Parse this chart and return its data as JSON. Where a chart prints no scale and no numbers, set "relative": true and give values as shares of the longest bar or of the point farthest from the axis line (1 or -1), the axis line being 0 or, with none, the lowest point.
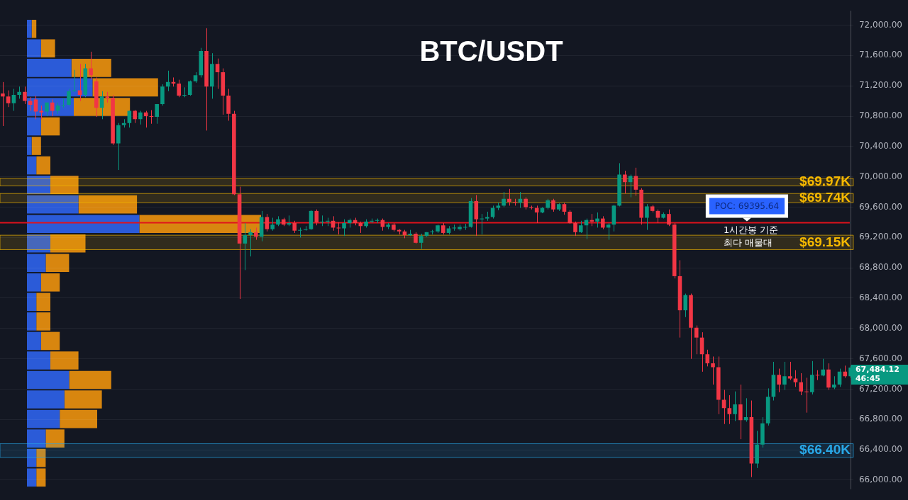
{
  "chart_data": [
    {
      "type": "candlestick",
      "title": "BTC/USDT",
      "categories": [
        null,
        null,
        null,
        null,
        null,
        null,
        null,
        null,
        null,
        null,
        null,
        null,
        null,
        null,
        null,
        null,
        null,
        null,
        null,
        null,
        null,
        null,
        null,
        null,
        null,
        null,
        null,
        null,
        null,
        null,
        null,
        null,
        null,
        null,
        null,
        null,
        null,
        null,
        null,
        null,
        null,
        null,
        null,
        null,
        null,
        null,
        null,
        null,
        null,
        null,
        null,
        null,
        null,
        null,
        null,
        null,
        null,
        null,
        null,
        null,
        null,
        null,
        null,
        null,
        null,
        null,
        null,
        null,
        null,
        null,
        null,
        null,
        null,
        null,
        null,
        null,
        null,
        null,
        null,
        null,
        null,
        null,
        null,
        null,
        null,
        null,
        null,
        null,
        null,
        null,
        null,
        null,
        null,
        null,
        null,
        null,
        null,
        null,
        null,
        null,
        null,
        null,
        null,
        null,
        null,
        null,
        null,
        null,
        null,
        null,
        null,
        null,
        null,
        null,
        null,
        null,
        null,
        null,
        null,
        null,
        null,
        null,
        null,
        null,
        null,
        null,
        null,
        null,
        null,
        null,
        null,
        null,
        null,
        null,
        null,
        null,
        null,
        null,
        null,
        null,
        null,
        null,
        null,
        null,
        null,
        null,
        null,
        null,
        null,
        null,
        null,
        null,
        null,
        null,
        null
      ],
      "ohlc": [
        [
          71100,
          71250,
          70670,
          71060
        ],
        [
          71060,
          71140,
          70920,
          70970
        ],
        [
          70970,
          71160,
          70870,
          71080
        ],
        [
          71080,
          71190,
          71030,
          71120
        ],
        [
          71120,
          71190,
          70960,
          71000
        ],
        [
          71000,
          71050,
          70870,
          70950
        ],
        [
          71020,
          71070,
          70760,
          70860
        ],
        [
          70870,
          70940,
          70760,
          70850
        ],
        [
          70860,
          70980,
          70800,
          70980
        ],
        [
          70980,
          71020,
          70800,
          70870
        ],
        [
          70870,
          70980,
          70830,
          70940
        ],
        [
          70940,
          71030,
          70910,
          70950
        ],
        [
          70950,
          71160,
          70940,
          71130
        ],
        [
          71130,
          71410,
          71120,
          71140
        ],
        [
          71140,
          71490,
          71000,
          71080
        ],
        [
          71080,
          71490,
          71050,
          71430
        ],
        [
          71430,
          71650,
          71280,
          71340
        ],
        [
          71260,
          71310,
          70790,
          70910
        ],
        [
          70910,
          71130,
          70760,
          71060
        ],
        [
          71060,
          71120,
          70980,
          71040
        ],
        [
          71040,
          71080,
          70420,
          70440
        ],
        [
          70440,
          70710,
          70090,
          70680
        ],
        [
          70680,
          70760,
          70650,
          70710
        ],
        [
          70710,
          70870,
          70650,
          70870
        ],
        [
          70870,
          70880,
          70710,
          70760
        ],
        [
          70760,
          70870,
          70690,
          70850
        ],
        [
          70850,
          70870,
          70650,
          70800
        ],
        [
          70800,
          70880,
          70700,
          70790
        ],
        [
          70790,
          70960,
          70700,
          70960
        ],
        [
          70960,
          71220,
          70940,
          71190
        ],
        [
          71190,
          71400,
          71130,
          71250
        ],
        [
          71250,
          71310,
          71190,
          71230
        ],
        [
          71230,
          71280,
          71050,
          71070
        ],
        [
          71070,
          71180,
          71050,
          71080
        ],
        [
          71080,
          71270,
          71070,
          71260
        ],
        [
          71260,
          71380,
          71240,
          71340
        ],
        [
          71340,
          71700,
          71310,
          71660
        ],
        [
          71660,
          71960,
          70610,
          71190
        ],
        [
          71190,
          71630,
          71030,
          71490
        ],
        [
          71490,
          71560,
          71160,
          71380
        ],
        [
          71380,
          71430,
          70820,
          71070
        ],
        [
          71070,
          71160,
          70740,
          70830
        ],
        [
          70830,
          70870,
          69760,
          69770
        ],
        [
          69770,
          69870,
          68390,
          69120
        ],
        [
          69120,
          69390,
          68770,
          69230
        ],
        [
          69230,
          69310,
          68950,
          69270
        ],
        [
          69270,
          69330,
          69170,
          69210
        ],
        [
          69210,
          69550,
          69150,
          69470
        ],
        [
          69470,
          69510,
          69280,
          69310
        ],
        [
          69310,
          69460,
          69290,
          69370
        ],
        [
          69370,
          69480,
          69350,
          69440
        ],
        [
          69440,
          69460,
          69350,
          69370
        ],
        [
          69370,
          69490,
          69350,
          69390
        ],
        [
          69390,
          69420,
          69260,
          69290
        ],
        [
          69290,
          69330,
          69200,
          69300
        ],
        [
          69300,
          69350,
          69290,
          69310
        ],
        [
          69310,
          69560,
          69300,
          69550
        ],
        [
          69550,
          69570,
          69360,
          69400
        ],
        [
          69400,
          69490,
          69350,
          69410
        ],
        [
          69410,
          69460,
          69350,
          69420
        ],
        [
          69420,
          69480,
          69290,
          69330
        ],
        [
          69330,
          69400,
          69240,
          69320
        ],
        [
          69320,
          69440,
          69220,
          69390
        ],
        [
          69390,
          69450,
          69330,
          69430
        ],
        [
          69430,
          69460,
          69360,
          69390
        ],
        [
          69390,
          69410,
          69260,
          69350
        ],
        [
          69350,
          69440,
          69330,
          69410
        ],
        [
          69410,
          69450,
          69390,
          69420
        ],
        [
          69420,
          69450,
          69390,
          69430
        ],
        [
          69430,
          69450,
          69290,
          69340
        ],
        [
          69340,
          69390,
          69310,
          69370
        ],
        [
          69370,
          69390,
          69280,
          69300
        ],
        [
          69300,
          69310,
          69240,
          69280
        ],
        [
          69280,
          69300,
          69190,
          69230
        ],
        [
          69230,
          69300,
          69220,
          69250
        ],
        [
          69250,
          69270,
          69120,
          69130
        ],
        [
          69130,
          69250,
          69050,
          69220
        ],
        [
          69220,
          69270,
          69210,
          69270
        ],
        [
          69270,
          69300,
          69240,
          69280
        ],
        [
          69280,
          69370,
          69260,
          69360
        ],
        [
          69360,
          69390,
          69240,
          69260
        ],
        [
          69260,
          69350,
          69240,
          69320
        ],
        [
          69320,
          69370,
          69290,
          69330
        ],
        [
          69310,
          69370,
          69290,
          69340
        ],
        [
          69330,
          69380,
          69300,
          69340
        ],
        [
          69340,
          69720,
          69330,
          69680
        ],
        [
          69680,
          69760,
          69220,
          69440
        ],
        [
          69440,
          69510,
          69240,
          69450
        ],
        [
          69450,
          69540,
          69420,
          69470
        ],
        [
          69470,
          69620,
          69450,
          69590
        ],
        [
          69590,
          69660,
          69560,
          69620
        ],
        [
          69620,
          69800,
          69600,
          69710
        ],
        [
          69710,
          69840,
          69620,
          69670
        ],
        [
          69670,
          69710,
          69620,
          69660
        ],
        [
          69660,
          69800,
          69590,
          69710
        ],
        [
          69710,
          69730,
          69570,
          69600
        ],
        [
          69600,
          69620,
          69570,
          69590
        ],
        [
          69590,
          69620,
          69390,
          69530
        ],
        [
          69530,
          69600,
          69520,
          69590
        ],
        [
          69590,
          69710,
          69570,
          69690
        ],
        [
          69690,
          69710,
          69540,
          69570
        ],
        [
          69570,
          69650,
          69550,
          69640
        ],
        [
          69640,
          69660,
          69500,
          69540
        ],
        [
          69540,
          69560,
          69380,
          69390
        ],
        [
          69390,
          69410,
          69220,
          69270
        ],
        [
          69270,
          69420,
          69260,
          69360
        ],
        [
          69360,
          69450,
          69180,
          69430
        ],
        [
          69430,
          69510,
          69350,
          69410
        ],
        [
          69410,
          69530,
          69330,
          69450
        ],
        [
          69450,
          69480,
          69310,
          69330
        ],
        [
          69330,
          69390,
          69170,
          69370
        ],
        [
          69370,
          69630,
          69280,
          69620
        ],
        [
          69620,
          70180,
          69610,
          70030
        ],
        [
          70030,
          70080,
          69780,
          69930
        ],
        [
          69930,
          70030,
          69730,
          70010
        ],
        [
          70010,
          70120,
          69750,
          69830
        ],
        [
          69830,
          69850,
          69370,
          69460
        ],
        [
          69460,
          69640,
          69300,
          69610
        ],
        [
          69610,
          69630,
          69530,
          69550
        ],
        [
          69550,
          69570,
          69390,
          69460
        ],
        [
          69460,
          69530,
          69450,
          69510
        ],
        [
          69510,
          69570,
          69350,
          69370
        ],
        [
          69370,
          69390,
          68660,
          68690
        ],
        [
          68690,
          68900,
          67880,
          68240
        ],
        [
          68240,
          68460,
          68150,
          68440
        ],
        [
          68440,
          68460,
          67600,
          68010
        ],
        [
          68010,
          68040,
          67660,
          67880
        ],
        [
          67880,
          67950,
          67430,
          67660
        ],
        [
          67660,
          67720,
          67500,
          67540
        ],
        [
          67540,
          67630,
          67260,
          67490
        ],
        [
          67490,
          67630,
          66870,
          67060
        ],
        [
          67060,
          67190,
          66740,
          66950
        ],
        [
          66950,
          67120,
          66740,
          66870
        ],
        [
          66870,
          67170,
          66780,
          67000
        ],
        [
          67000,
          67260,
          66540,
          66790
        ],
        [
          66790,
          67080,
          66770,
          66830
        ],
        [
          66830,
          67050,
          66040,
          66220
        ],
        [
          66220,
          66650,
          66160,
          66470
        ],
        [
          66470,
          66830,
          66430,
          66750
        ],
        [
          66750,
          67210,
          66720,
          67100
        ],
        [
          67100,
          67560,
          67050,
          67390
        ],
        [
          67390,
          67470,
          67160,
          67260
        ],
        [
          67260,
          67560,
          67190,
          67370
        ],
        [
          67370,
          67560,
          67320,
          67340
        ],
        [
          67340,
          67450,
          67230,
          67290
        ],
        [
          67290,
          67410,
          67120,
          67170
        ],
        [
          67170,
          67350,
          66890,
          67160
        ],
        [
          67160,
          67570,
          67130,
          67390
        ],
        [
          67390,
          67450,
          67320,
          67380
        ],
        [
          67380,
          67600,
          67370,
          67460
        ],
        [
          67460,
          67540,
          67190,
          67220
        ],
        [
          67220,
          67370,
          67200,
          67260
        ],
        [
          67260,
          67470,
          67230,
          67430
        ],
        [
          67430,
          67510,
          67350,
          67370
        ],
        [
          67370,
          67510,
          67350,
          67484.12
        ]
      ],
      "ylim": [
        65880,
        72190
      ],
      "yticks": [
        {
          "value": 66000,
          "label": "66,000.00"
        },
        {
          "value": 66400,
          "label": "66,400.00"
        },
        {
          "value": 66800,
          "label": "66,800.00"
        },
        {
          "value": 67200,
          "label": "67,200.00"
        },
        {
          "value": 67600,
          "label": "67,600.00"
        },
        {
          "value": 68000,
          "label": "68,000.00"
        },
        {
          "value": 68400,
          "label": "68,400.00"
        },
        {
          "value": 68800,
          "label": "68,800.00"
        },
        {
          "value": 69200,
          "label": "69,200.00"
        },
        {
          "value": 69600,
          "label": "69,600.00"
        },
        {
          "value": 70000,
          "label": "70,000.00"
        },
        {
          "value": 70400,
          "label": "70,400.00"
        },
        {
          "value": 70800,
          "label": "70,800.00"
        },
        {
          "value": 71200,
          "label": "71,200.00"
        },
        {
          "value": 71600,
          "label": "71,600.00"
        },
        {
          "value": 72000,
          "label": "72,000.00"
        }
      ],
      "grid": "y",
      "tick_labels": "y",
      "bands": [
        {
          "axis": "y",
          "from": 69880,
          "to": 69980,
          "label": "$69.97K",
          "color": "#f5b800"
        },
        {
          "axis": "y",
          "from": 69660,
          "to": 69780,
          "label": "$69.74K",
          "color": "#f5b800"
        },
        {
          "axis": "y",
          "from": 69040,
          "to": 69230,
          "label": "$69.15K",
          "color": "#f5b800"
        },
        {
          "axis": "y",
          "from": 66300,
          "to": 66480,
          "label": "$66.40K",
          "color": "#29a8e8"
        }
      ],
      "ref_lines": [
        {
          "axis": "y",
          "value": 69395.64,
          "label": "POC: 69395.64",
          "color": "#e0121b"
        }
      ],
      "annotations": [
        "1시간봉 기준\n최다 매물대",
        "67,484.12",
        "46:45"
      ]
    },
    {
      "type": "bar",
      "orientation": "horizontal",
      "stacked": true,
      "relative": true,
      "categories": [
        null,
        null,
        null,
        null,
        null,
        null,
        null,
        null,
        null,
        null,
        null,
        null,
        null,
        null,
        null,
        null,
        null,
        null,
        null,
        null,
        null,
        null,
        null,
        null
      ],
      "series": [
        {
          "color": "#2b5bd8",
          "values": [
            0.02,
            0.06,
            0.19,
            0.28,
            0.2,
            0.06,
            0.02,
            0.04,
            0.1,
            0.22,
            0.48,
            0.1,
            0.08,
            0.06,
            0.04,
            0.04,
            0.06,
            0.1,
            0.18,
            0.16,
            0.14,
            0.08,
            0.04,
            0.04
          ]
        },
        {
          "color": "#d8860f",
          "values": [
            0.02,
            0.06,
            0.17,
            0.28,
            0.24,
            0.08,
            0.04,
            0.06,
            0.12,
            0.25,
            0.52,
            0.15,
            0.1,
            0.08,
            0.06,
            0.06,
            0.08,
            0.12,
            0.18,
            0.16,
            0.16,
            0.08,
            0.04,
            0.04
          ]
        }
      ]
    }
  ]
}
